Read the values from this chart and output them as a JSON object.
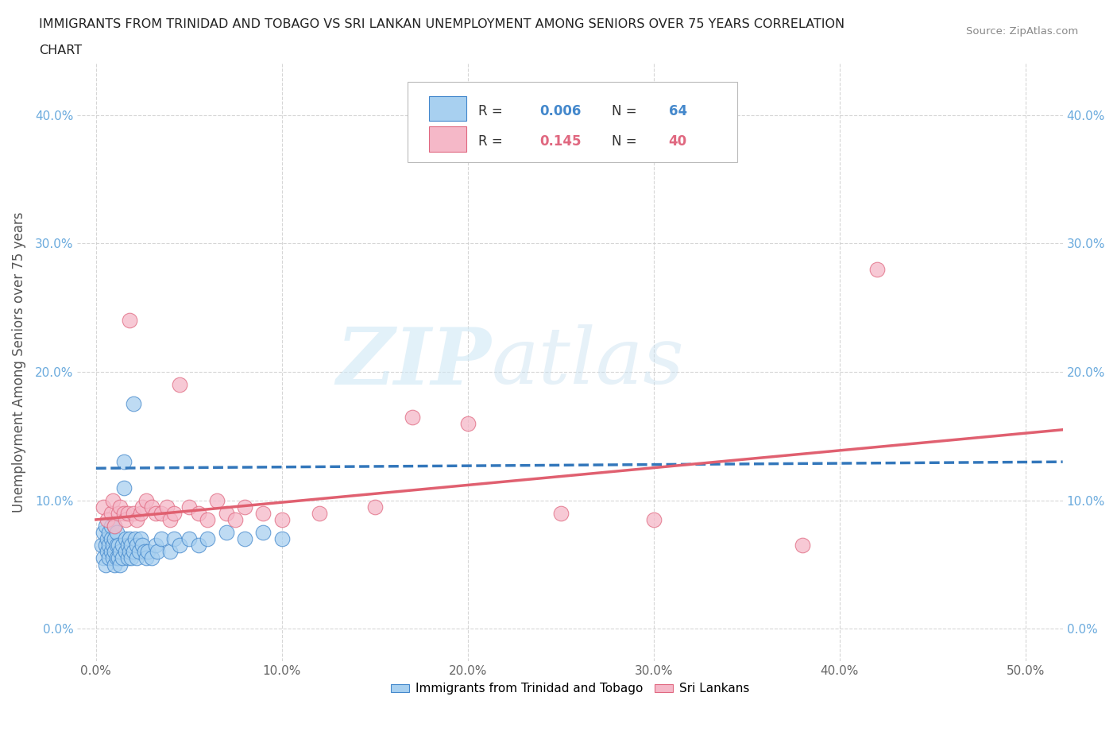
{
  "title_line1": "IMMIGRANTS FROM TRINIDAD AND TOBAGO VS SRI LANKAN UNEMPLOYMENT AMONG SENIORS OVER 75 YEARS CORRELATION",
  "title_line2": "CHART",
  "source": "Source: ZipAtlas.com",
  "ylabel": "Unemployment Among Seniors over 75 years",
  "x_ticks": [
    0.0,
    0.1,
    0.2,
    0.3,
    0.4,
    0.5
  ],
  "x_tick_labels": [
    "0.0%",
    "10.0%",
    "20.0%",
    "30.0%",
    "40.0%",
    "50.0%"
  ],
  "y_ticks": [
    0.0,
    0.1,
    0.2,
    0.3,
    0.4
  ],
  "y_tick_labels": [
    "0.0%",
    "10.0%",
    "20.0%",
    "30.0%",
    "40.0%"
  ],
  "xlim": [
    -0.01,
    0.52
  ],
  "ylim": [
    -0.025,
    0.44
  ],
  "R_blue": 0.006,
  "N_blue": 64,
  "R_pink": 0.145,
  "N_pink": 40,
  "color_blue": "#a8d0f0",
  "color_pink": "#f5b8c8",
  "edge_blue": "#4488cc",
  "edge_pink": "#e06880",
  "line_blue": "#3377bb",
  "line_pink": "#e06070",
  "legend_label_blue": "Immigrants from Trinidad and Tobago",
  "legend_label_pink": "Sri Lankans",
  "blue_x": [
    0.003,
    0.004,
    0.004,
    0.005,
    0.005,
    0.005,
    0.006,
    0.006,
    0.007,
    0.007,
    0.007,
    0.008,
    0.008,
    0.008,
    0.009,
    0.009,
    0.01,
    0.01,
    0.01,
    0.01,
    0.011,
    0.011,
    0.011,
    0.012,
    0.012,
    0.013,
    0.013,
    0.014,
    0.014,
    0.015,
    0.015,
    0.016,
    0.016,
    0.017,
    0.017,
    0.018,
    0.018,
    0.019,
    0.019,
    0.02,
    0.02,
    0.021,
    0.022,
    0.022,
    0.023,
    0.024,
    0.025,
    0.026,
    0.027,
    0.028,
    0.03,
    0.032,
    0.033,
    0.035,
    0.04,
    0.042,
    0.045,
    0.05,
    0.055,
    0.06,
    0.07,
    0.08,
    0.09,
    0.1
  ],
  "blue_y": [
    0.065,
    0.075,
    0.055,
    0.05,
    0.065,
    0.08,
    0.06,
    0.07,
    0.055,
    0.065,
    0.075,
    0.06,
    0.07,
    0.08,
    0.055,
    0.065,
    0.05,
    0.06,
    0.07,
    0.08,
    0.055,
    0.065,
    0.075,
    0.055,
    0.065,
    0.05,
    0.06,
    0.055,
    0.065,
    0.11,
    0.13,
    0.06,
    0.07,
    0.055,
    0.065,
    0.06,
    0.07,
    0.055,
    0.065,
    0.06,
    0.175,
    0.07,
    0.055,
    0.065,
    0.06,
    0.07,
    0.065,
    0.06,
    0.055,
    0.06,
    0.055,
    0.065,
    0.06,
    0.07,
    0.06,
    0.07,
    0.065,
    0.07,
    0.065,
    0.07,
    0.075,
    0.07,
    0.075,
    0.07
  ],
  "pink_x": [
    0.004,
    0.006,
    0.008,
    0.009,
    0.01,
    0.012,
    0.013,
    0.015,
    0.016,
    0.017,
    0.018,
    0.02,
    0.022,
    0.024,
    0.025,
    0.027,
    0.03,
    0.032,
    0.035,
    0.038,
    0.04,
    0.042,
    0.045,
    0.05,
    0.055,
    0.06,
    0.065,
    0.07,
    0.075,
    0.08,
    0.09,
    0.1,
    0.12,
    0.15,
    0.17,
    0.2,
    0.25,
    0.3,
    0.38,
    0.42
  ],
  "pink_y": [
    0.095,
    0.085,
    0.09,
    0.1,
    0.08,
    0.09,
    0.095,
    0.09,
    0.085,
    0.09,
    0.24,
    0.09,
    0.085,
    0.09,
    0.095,
    0.1,
    0.095,
    0.09,
    0.09,
    0.095,
    0.085,
    0.09,
    0.19,
    0.095,
    0.09,
    0.085,
    0.1,
    0.09,
    0.085,
    0.095,
    0.09,
    0.085,
    0.09,
    0.095,
    0.165,
    0.16,
    0.09,
    0.085,
    0.065,
    0.28
  ],
  "blue_line_start_y": 0.125,
  "blue_line_end_y": 0.13,
  "pink_line_start_y": 0.085,
  "pink_line_end_y": 0.155
}
